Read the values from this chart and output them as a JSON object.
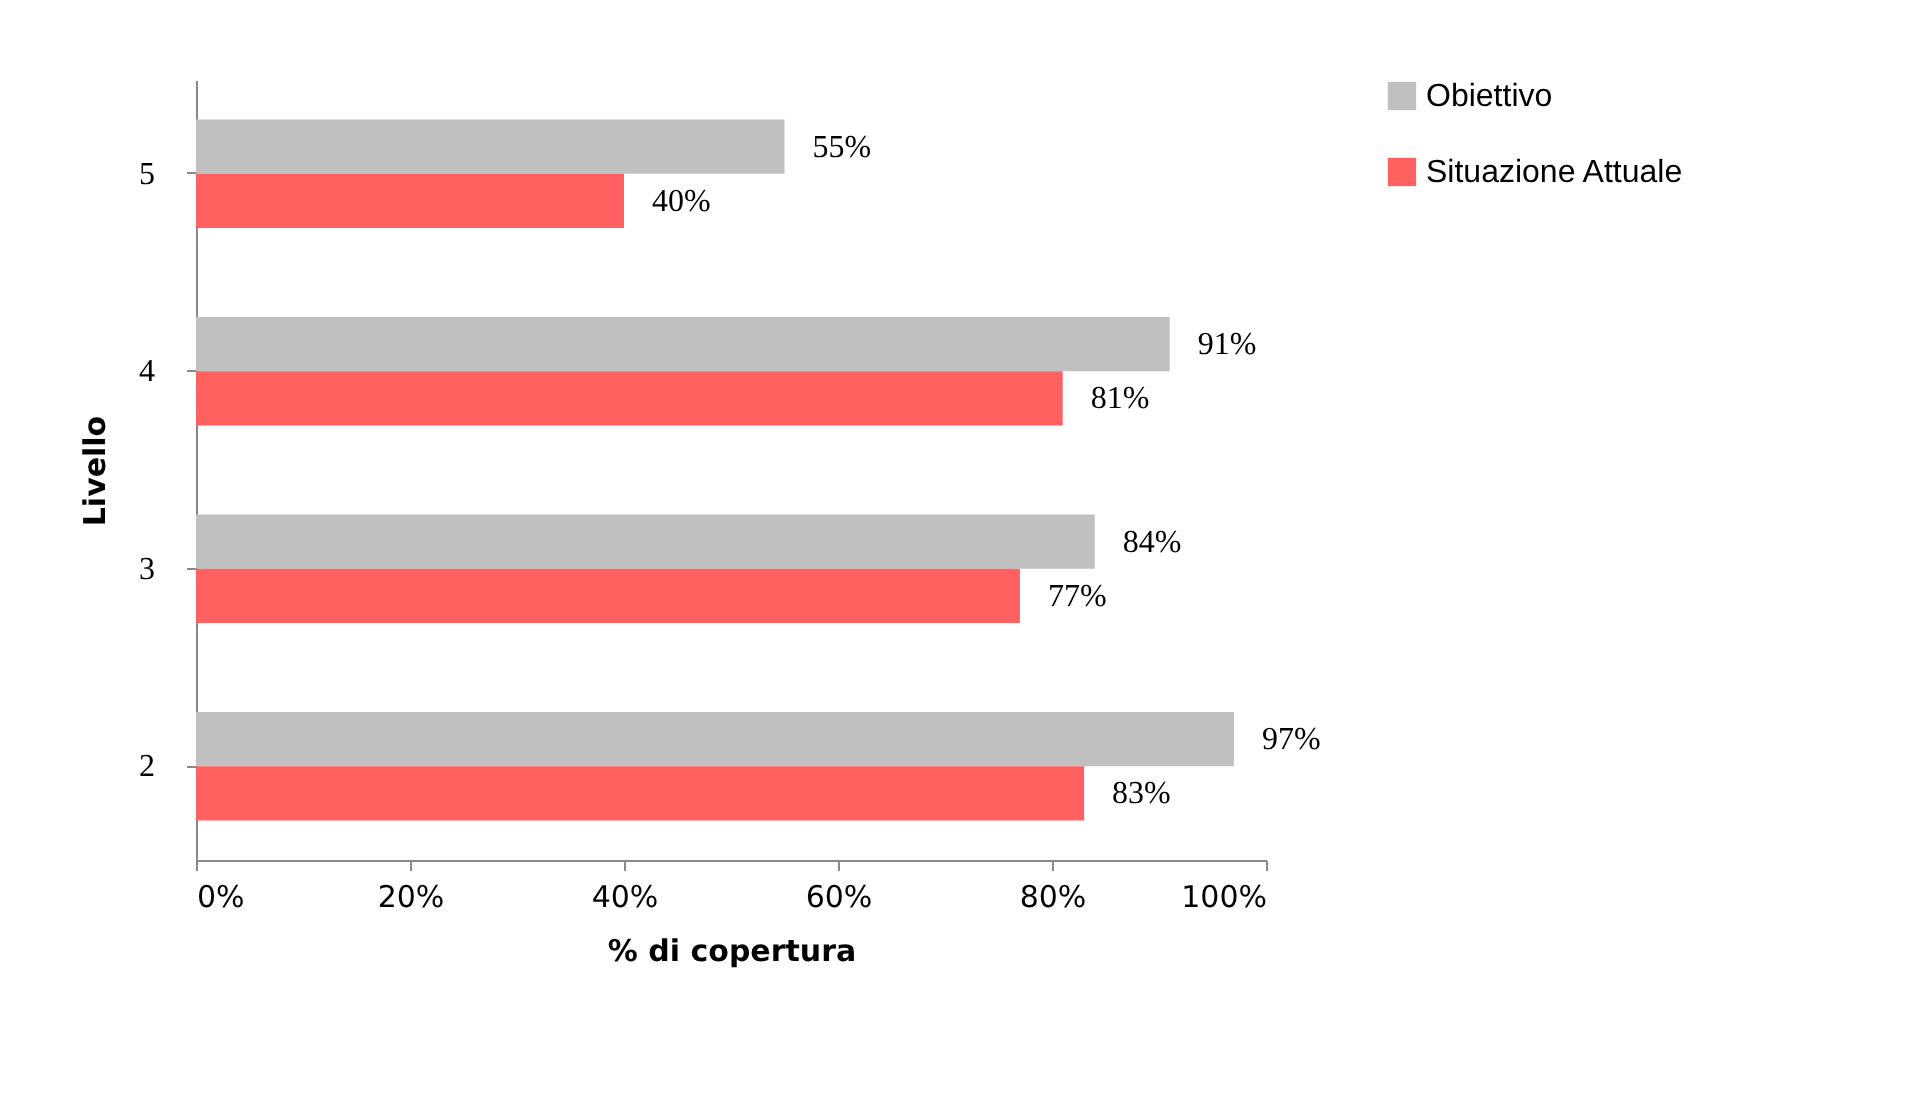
{
  "chart_data": {
    "type": "bar",
    "orientation": "horizontal",
    "xlabel": "% di copertura",
    "ylabel": "Livello",
    "categories": [
      "5",
      "4",
      "3",
      "2"
    ],
    "series": [
      {
        "name": "Obiettivo",
        "color": "#c0c0c0",
        "values": [
          55,
          91,
          84,
          97
        ],
        "value_labels": [
          "55%",
          "91%",
          "84%",
          "97%"
        ]
      },
      {
        "name": "Situazione Attuale",
        "color": "#ff6161",
        "values": [
          40,
          81,
          77,
          83
        ],
        "value_labels": [
          "40%",
          "81%",
          "77%",
          "83%"
        ]
      }
    ],
    "xlim": [
      0,
      100
    ],
    "xticks": [
      {
        "value": 0,
        "label": "0%"
      },
      {
        "value": 20,
        "label": "20%"
      },
      {
        "value": 40,
        "label": "40%"
      },
      {
        "value": 60,
        "label": "60%"
      },
      {
        "value": 80,
        "label": "80%"
      },
      {
        "value": 100,
        "label": "100%"
      }
    ],
    "grid": false,
    "legend": "right"
  }
}
